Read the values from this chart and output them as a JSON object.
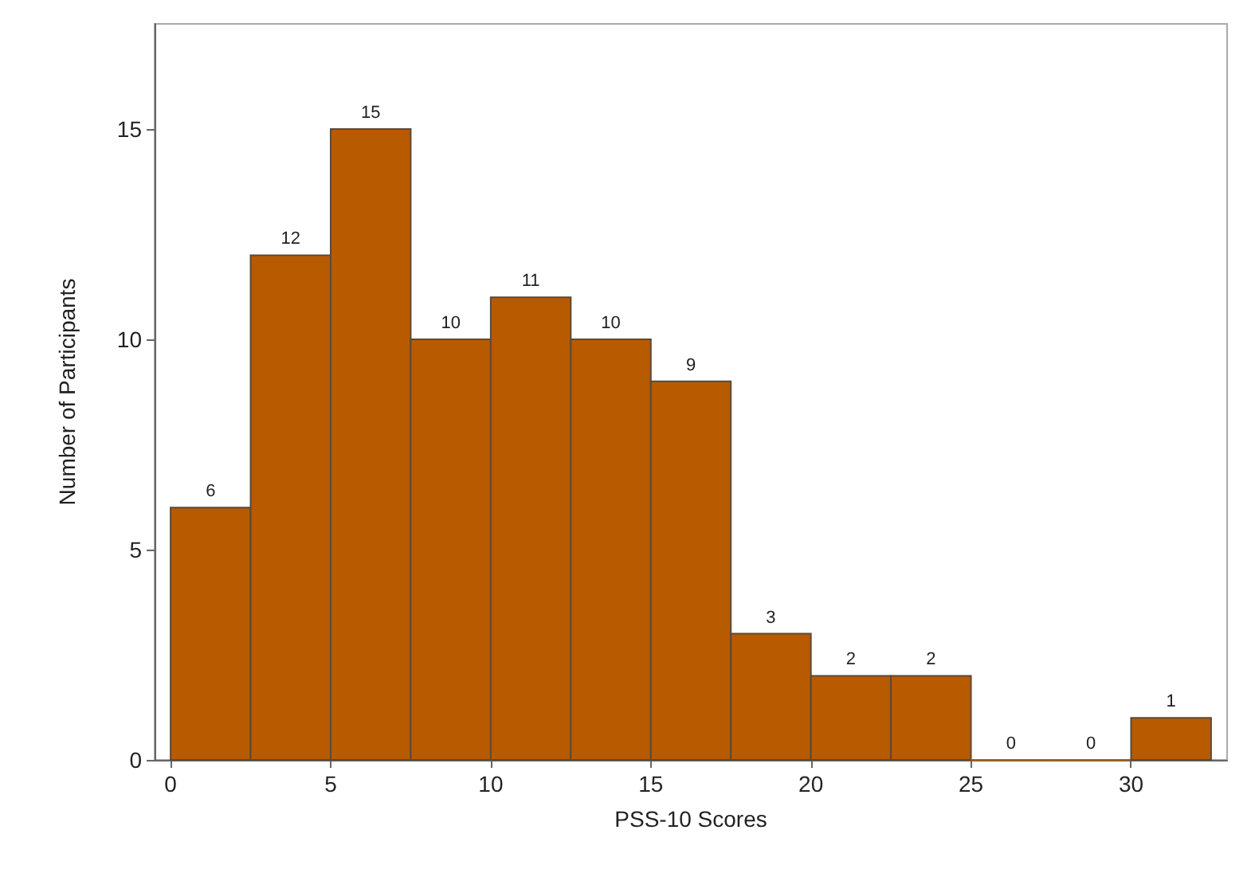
{
  "chart_data": {
    "type": "histogram",
    "xlabel": "PSS-10 Scores",
    "ylabel": "Number of Participants",
    "bins": [
      0,
      2.5,
      5,
      7.5,
      10,
      12.5,
      15,
      17.5,
      20,
      22.5,
      25,
      27.5,
      30,
      32.5
    ],
    "values": [
      6,
      12,
      15,
      10,
      11,
      10,
      9,
      3,
      2,
      2,
      0,
      0,
      1
    ],
    "color": "#b85a00",
    "data_labels": true,
    "grid": false,
    "xlim": [
      -0.5,
      33
    ],
    "xticks": [
      0,
      5,
      10,
      15,
      20,
      25,
      30
    ],
    "ylim": [
      0,
      17.5
    ],
    "yticks": [
      0,
      5,
      10,
      15
    ]
  }
}
